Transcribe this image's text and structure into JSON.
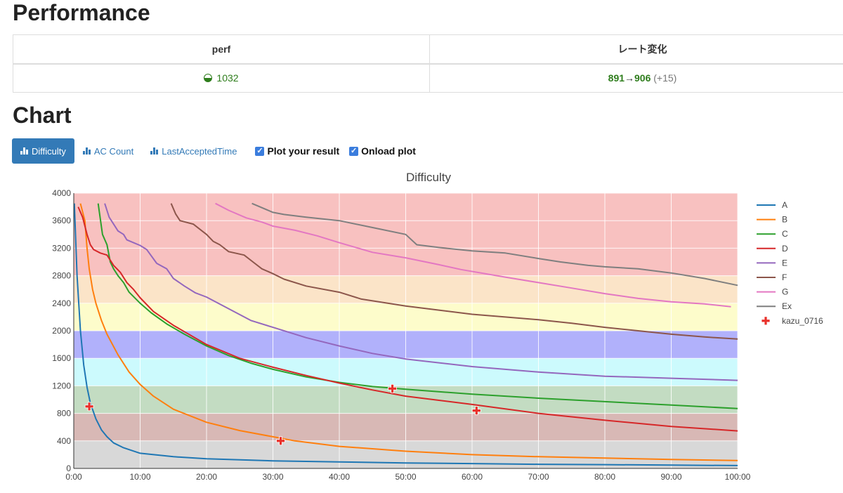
{
  "performance": {
    "heading": "Performance",
    "headers": [
      "perf",
      "レート変化"
    ],
    "perf_value": "1032",
    "rate_old": "891",
    "rate_arrow": "→",
    "rate_new": "906",
    "rate_diff": "(+15)",
    "perf_icon": "half-circle-rating-icon"
  },
  "chart_section": {
    "heading": "Chart",
    "tabs": [
      {
        "label": "Difficulty",
        "active": true,
        "icon": "bar-chart-icon"
      },
      {
        "label": "AC Count",
        "active": false,
        "icon": "bar-chart-icon"
      },
      {
        "label": "LastAcceptedTime",
        "active": false,
        "icon": "bar-chart-icon"
      }
    ],
    "checkboxes": [
      {
        "label": "Plot your result",
        "checked": true
      },
      {
        "label": "Onload plot",
        "checked": true
      }
    ]
  },
  "chart_data": {
    "type": "line",
    "title": "Difficulty",
    "xlabel": "",
    "ylabel": "",
    "xlim": [
      0,
      6000
    ],
    "ylim": [
      0,
      4000
    ],
    "xticks": [
      0,
      600,
      1200,
      1800,
      2400,
      3000,
      3600,
      4200,
      4800,
      5400,
      6000
    ],
    "xtick_labels": [
      "0:00",
      "10:00",
      "20:00",
      "30:00",
      "40:00",
      "50:00",
      "60:00",
      "70:00",
      "80:00",
      "90:00",
      "100:00"
    ],
    "yticks": [
      0,
      400,
      800,
      1200,
      1600,
      2000,
      2400,
      2800,
      3200,
      3600,
      4000
    ],
    "grid": true,
    "legend_position": "right",
    "bands": [
      {
        "from": 0,
        "to": 400,
        "color": "#d8d8d8"
      },
      {
        "from": 400,
        "to": 800,
        "color": "#d8b8b5"
      },
      {
        "from": 800,
        "to": 1200,
        "color": "#c3dcc2"
      },
      {
        "from": 1200,
        "to": 1600,
        "color": "#ccfafd"
      },
      {
        "from": 1600,
        "to": 2000,
        "color": "#b1b1fb"
      },
      {
        "from": 2000,
        "to": 2400,
        "color": "#fdfccb"
      },
      {
        "from": 2400,
        "to": 2800,
        "color": "#fbe4c8"
      },
      {
        "from": 2800,
        "to": 4000,
        "color": "#f8c1c0"
      }
    ],
    "series": [
      {
        "name": "A",
        "color": "#1f77b4",
        "points": [
          [
            5,
            3850
          ],
          [
            30,
            2800
          ],
          [
            60,
            2000
          ],
          [
            90,
            1500
          ],
          [
            120,
            1180
          ],
          [
            150,
            950
          ],
          [
            200,
            720
          ],
          [
            250,
            560
          ],
          [
            300,
            460
          ],
          [
            360,
            370
          ],
          [
            450,
            300
          ],
          [
            600,
            220
          ],
          [
            900,
            170
          ],
          [
            1200,
            140
          ],
          [
            1800,
            110
          ],
          [
            2400,
            95
          ],
          [
            3000,
            80
          ],
          [
            3600,
            70
          ],
          [
            4200,
            60
          ],
          [
            4800,
            55
          ],
          [
            5400,
            48
          ],
          [
            6000,
            42
          ]
        ]
      },
      {
        "name": "B",
        "color": "#ff7f0e",
        "points": [
          [
            60,
            3850
          ],
          [
            100,
            3600
          ],
          [
            120,
            3200
          ],
          [
            140,
            2900
          ],
          [
            170,
            2600
          ],
          [
            200,
            2400
          ],
          [
            250,
            2150
          ],
          [
            300,
            1950
          ],
          [
            400,
            1650
          ],
          [
            500,
            1400
          ],
          [
            600,
            1220
          ],
          [
            720,
            1050
          ],
          [
            900,
            860
          ],
          [
            1200,
            670
          ],
          [
            1500,
            550
          ],
          [
            1800,
            460
          ],
          [
            2000,
            400
          ],
          [
            2400,
            320
          ],
          [
            3000,
            250
          ],
          [
            3600,
            200
          ],
          [
            4200,
            170
          ],
          [
            4800,
            150
          ],
          [
            5400,
            130
          ],
          [
            6000,
            115
          ]
        ]
      },
      {
        "name": "C",
        "color": "#2ca02c",
        "points": [
          [
            220,
            3850
          ],
          [
            260,
            3400
          ],
          [
            300,
            3250
          ],
          [
            330,
            3000
          ],
          [
            360,
            2900
          ],
          [
            400,
            2800
          ],
          [
            450,
            2700
          ],
          [
            500,
            2560
          ],
          [
            600,
            2400
          ],
          [
            700,
            2260
          ],
          [
            840,
            2100
          ],
          [
            1000,
            1950
          ],
          [
            1200,
            1780
          ],
          [
            1400,
            1640
          ],
          [
            1600,
            1530
          ],
          [
            1800,
            1440
          ],
          [
            2100,
            1330
          ],
          [
            2400,
            1250
          ],
          [
            2700,
            1190
          ],
          [
            3000,
            1150
          ],
          [
            3600,
            1080
          ],
          [
            4200,
            1020
          ],
          [
            4800,
            970
          ],
          [
            5400,
            920
          ],
          [
            6000,
            870
          ]
        ]
      },
      {
        "name": "D",
        "color": "#d62728",
        "points": [
          [
            40,
            3800
          ],
          [
            80,
            3650
          ],
          [
            120,
            3400
          ],
          [
            150,
            3250
          ],
          [
            180,
            3180
          ],
          [
            240,
            3130
          ],
          [
            300,
            3100
          ],
          [
            360,
            2950
          ],
          [
            420,
            2850
          ],
          [
            480,
            2700
          ],
          [
            540,
            2600
          ],
          [
            600,
            2480
          ],
          [
            720,
            2280
          ],
          [
            900,
            2080
          ],
          [
            1200,
            1800
          ],
          [
            1500,
            1600
          ],
          [
            1800,
            1470
          ],
          [
            2100,
            1350
          ],
          [
            2400,
            1240
          ],
          [
            2700,
            1140
          ],
          [
            3000,
            1050
          ],
          [
            3300,
            990
          ],
          [
            3600,
            930
          ],
          [
            4200,
            800
          ],
          [
            4800,
            700
          ],
          [
            5400,
            610
          ],
          [
            6000,
            545
          ]
        ]
      },
      {
        "name": "E",
        "color": "#9467bd",
        "points": [
          [
            280,
            3850
          ],
          [
            320,
            3650
          ],
          [
            360,
            3550
          ],
          [
            400,
            3450
          ],
          [
            450,
            3400
          ],
          [
            480,
            3320
          ],
          [
            540,
            3280
          ],
          [
            600,
            3240
          ],
          [
            660,
            3180
          ],
          [
            750,
            2980
          ],
          [
            840,
            2900
          ],
          [
            900,
            2760
          ],
          [
            1000,
            2650
          ],
          [
            1100,
            2550
          ],
          [
            1200,
            2490
          ],
          [
            1400,
            2320
          ],
          [
            1600,
            2150
          ],
          [
            1800,
            2050
          ],
          [
            2100,
            1900
          ],
          [
            2400,
            1780
          ],
          [
            2700,
            1670
          ],
          [
            3000,
            1590
          ],
          [
            3600,
            1480
          ],
          [
            4200,
            1400
          ],
          [
            4800,
            1340
          ],
          [
            5400,
            1310
          ],
          [
            6000,
            1280
          ]
        ]
      },
      {
        "name": "F",
        "color": "#8c564b",
        "points": [
          [
            880,
            3850
          ],
          [
            920,
            3700
          ],
          [
            960,
            3600
          ],
          [
            1080,
            3550
          ],
          [
            1160,
            3450
          ],
          [
            1200,
            3400
          ],
          [
            1260,
            3300
          ],
          [
            1320,
            3250
          ],
          [
            1400,
            3150
          ],
          [
            1540,
            3100
          ],
          [
            1620,
            3000
          ],
          [
            1700,
            2900
          ],
          [
            1800,
            2830
          ],
          [
            1900,
            2750
          ],
          [
            2100,
            2650
          ],
          [
            2400,
            2560
          ],
          [
            2600,
            2460
          ],
          [
            3000,
            2360
          ],
          [
            3300,
            2300
          ],
          [
            3600,
            2240
          ],
          [
            3900,
            2200
          ],
          [
            4200,
            2160
          ],
          [
            4500,
            2110
          ],
          [
            4800,
            2050
          ],
          [
            5100,
            2000
          ],
          [
            5400,
            1950
          ],
          [
            5700,
            1910
          ],
          [
            6000,
            1880
          ]
        ]
      },
      {
        "name": "G",
        "color": "#e377c2",
        "points": [
          [
            1280,
            3850
          ],
          [
            1400,
            3750
          ],
          [
            1560,
            3640
          ],
          [
            1700,
            3580
          ],
          [
            1800,
            3520
          ],
          [
            2000,
            3460
          ],
          [
            2200,
            3380
          ],
          [
            2400,
            3280
          ],
          [
            2700,
            3140
          ],
          [
            3000,
            3060
          ],
          [
            3300,
            2960
          ],
          [
            3500,
            2890
          ],
          [
            3900,
            2780
          ],
          [
            4200,
            2700
          ],
          [
            4500,
            2620
          ],
          [
            4800,
            2540
          ],
          [
            5100,
            2470
          ],
          [
            5400,
            2420
          ],
          [
            5700,
            2390
          ],
          [
            5940,
            2350
          ]
        ]
      },
      {
        "name": "Ex",
        "color": "#7f7f7f",
        "points": [
          [
            1610,
            3850
          ],
          [
            1800,
            3720
          ],
          [
            1900,
            3690
          ],
          [
            2100,
            3650
          ],
          [
            2400,
            3600
          ],
          [
            2700,
            3500
          ],
          [
            3000,
            3400
          ],
          [
            3100,
            3250
          ],
          [
            3300,
            3210
          ],
          [
            3600,
            3160
          ],
          [
            3900,
            3130
          ],
          [
            4200,
            3050
          ],
          [
            4400,
            3000
          ],
          [
            4650,
            2950
          ],
          [
            4800,
            2930
          ],
          [
            5100,
            2900
          ],
          [
            5400,
            2840
          ],
          [
            5700,
            2760
          ],
          [
            6000,
            2660
          ]
        ]
      }
    ],
    "markers": {
      "name": "kazu_0716",
      "color": "#e8302a",
      "points": [
        [
          140,
          900
        ],
        [
          1870,
          400
        ],
        [
          2880,
          1160
        ],
        [
          3640,
          840
        ]
      ]
    }
  }
}
